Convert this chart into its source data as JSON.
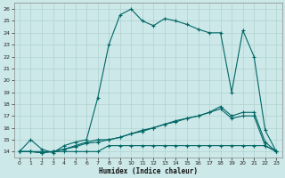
{
  "title": "",
  "xlabel": "Humidex (Indice chaleur)",
  "xlim": [
    -0.5,
    23.5
  ],
  "ylim": [
    13.5,
    26.5
  ],
  "xticks": [
    0,
    1,
    2,
    3,
    4,
    5,
    6,
    7,
    8,
    9,
    10,
    11,
    12,
    13,
    14,
    15,
    16,
    17,
    18,
    19,
    20,
    21,
    22,
    23
  ],
  "yticks": [
    14,
    15,
    16,
    17,
    18,
    19,
    20,
    21,
    22,
    23,
    24,
    25,
    26
  ],
  "background_color": "#cce8e8",
  "grid_color": "#aacccc",
  "line_color": "#006666",
  "line1_x": [
    0,
    1,
    2,
    3,
    4,
    5,
    6,
    7,
    8,
    9,
    10,
    11,
    12,
    13,
    14,
    15,
    16,
    17,
    18,
    19,
    20,
    21,
    22,
    23
  ],
  "line1_y": [
    14.0,
    15.0,
    14.2,
    13.9,
    14.5,
    14.8,
    15.0,
    18.5,
    23.0,
    25.5,
    26.0,
    25.0,
    24.6,
    25.2,
    25.0,
    24.7,
    24.3,
    24.0,
    24.0,
    19.0,
    24.2,
    22.0,
    15.8,
    14.0
  ],
  "line2_x": [
    0,
    1,
    2,
    3,
    4,
    5,
    6,
    7,
    8,
    9,
    10,
    11,
    12,
    13,
    14,
    15,
    16,
    17,
    18,
    19,
    20,
    21,
    22,
    23
  ],
  "line2_y": [
    14.0,
    14.0,
    13.9,
    14.0,
    14.2,
    14.5,
    14.8,
    15.0,
    15.0,
    15.2,
    15.5,
    15.7,
    16.0,
    16.3,
    16.5,
    16.8,
    17.0,
    17.3,
    17.8,
    17.0,
    17.3,
    17.3,
    14.8,
    14.0
  ],
  "line3_x": [
    0,
    1,
    2,
    3,
    4,
    5,
    6,
    7,
    8,
    9,
    10,
    11,
    12,
    13,
    14,
    15,
    16,
    17,
    18,
    19,
    20,
    21,
    22,
    23
  ],
  "line3_y": [
    14.0,
    14.0,
    13.9,
    14.0,
    14.2,
    14.4,
    14.7,
    14.8,
    15.0,
    15.2,
    15.5,
    15.8,
    16.0,
    16.3,
    16.6,
    16.8,
    17.0,
    17.3,
    17.6,
    16.8,
    17.0,
    17.0,
    14.5,
    14.0
  ],
  "line4_x": [
    0,
    1,
    2,
    3,
    4,
    5,
    6,
    7,
    8,
    9,
    10,
    11,
    12,
    13,
    14,
    15,
    16,
    17,
    18,
    19,
    20,
    21,
    22,
    23
  ],
  "line4_y": [
    14.0,
    14.0,
    14.0,
    14.0,
    14.0,
    14.0,
    14.0,
    14.0,
    14.5,
    14.5,
    14.5,
    14.5,
    14.5,
    14.5,
    14.5,
    14.5,
    14.5,
    14.5,
    14.5,
    14.5,
    14.5,
    14.5,
    14.5,
    14.0
  ]
}
